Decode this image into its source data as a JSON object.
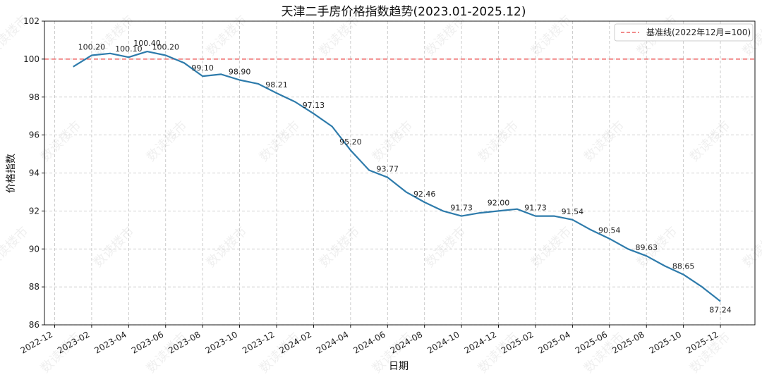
{
  "chart_data": {
    "type": "line",
    "title": "天津二手房价格指数趋势(2023.01-2025.12)",
    "xlabel": "日期",
    "ylabel": "价格指数",
    "ylim": [
      86,
      102
    ],
    "yticks": [
      86,
      88,
      90,
      92,
      94,
      96,
      98,
      100,
      102
    ],
    "xticks": [
      "2022-12",
      "2023-02",
      "2023-04",
      "2023-06",
      "2023-08",
      "2023-10",
      "2023-12",
      "2024-02",
      "2024-04",
      "2024-06",
      "2024-08",
      "2024-10",
      "2024-12",
      "2025-02",
      "2025-04",
      "2025-06",
      "2025-08",
      "2025-10",
      "2025-12"
    ],
    "grid": true,
    "series": [
      {
        "name": "价格指数",
        "color": "#2e7bab",
        "x": [
          "2023-01",
          "2023-02",
          "2023-03",
          "2023-04",
          "2023-05",
          "2023-06",
          "2023-07",
          "2023-08",
          "2023-09",
          "2023-10",
          "2023-11",
          "2023-12",
          "2024-01",
          "2024-02",
          "2024-03",
          "2024-04",
          "2024-05",
          "2024-06",
          "2024-07",
          "2024-08",
          "2024-09",
          "2024-10",
          "2024-11",
          "2024-12",
          "2025-01",
          "2025-02",
          "2025-03",
          "2025-04",
          "2025-05",
          "2025-06",
          "2025-07",
          "2025-08",
          "2025-09",
          "2025-10",
          "2025-11",
          "2025-12"
        ],
        "values": [
          99.6,
          100.2,
          100.3,
          100.1,
          100.4,
          100.2,
          99.8,
          99.1,
          99.2,
          98.9,
          98.7,
          98.21,
          97.75,
          97.13,
          96.45,
          95.2,
          94.15,
          93.77,
          93.0,
          92.46,
          92.0,
          91.73,
          91.9,
          92.0,
          92.1,
          91.73,
          91.73,
          91.54,
          91.0,
          90.54,
          90.0,
          89.63,
          89.1,
          88.65,
          88.0,
          87.24
        ]
      }
    ],
    "reference_line": {
      "value": 100,
      "label": "基准线(2022年12月=100)",
      "color": "#ee6666",
      "style": "dashed"
    },
    "annotations": [
      {
        "x": "2023-02",
        "text": "100.20"
      },
      {
        "x": "2023-04",
        "text": "100.10"
      },
      {
        "x": "2023-05",
        "text": "100.40"
      },
      {
        "x": "2023-06",
        "text": "100.20"
      },
      {
        "x": "2023-08",
        "text": "99.10"
      },
      {
        "x": "2023-10",
        "text": "98.90"
      },
      {
        "x": "2023-12",
        "text": "98.21"
      },
      {
        "x": "2024-02",
        "text": "97.13"
      },
      {
        "x": "2024-04",
        "text": "95.20"
      },
      {
        "x": "2024-06",
        "text": "93.77"
      },
      {
        "x": "2024-08",
        "text": "92.46"
      },
      {
        "x": "2024-10",
        "text": "91.73"
      },
      {
        "x": "2024-12",
        "text": "92.00"
      },
      {
        "x": "2025-02",
        "text": "91.73"
      },
      {
        "x": "2025-04",
        "text": "91.54"
      },
      {
        "x": "2025-06",
        "text": "90.54"
      },
      {
        "x": "2025-08",
        "text": "89.63"
      },
      {
        "x": "2025-10",
        "text": "88.65"
      },
      {
        "x": "2025-12",
        "text": "87.24"
      }
    ],
    "legend": {
      "position": "top-right",
      "entries": [
        "基准线(2022年12月=100)"
      ]
    },
    "watermark": "数读楼市"
  }
}
